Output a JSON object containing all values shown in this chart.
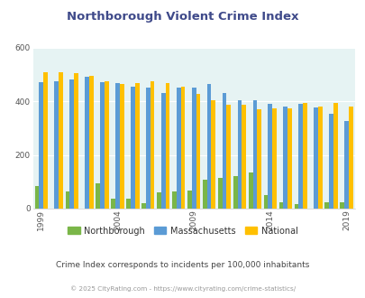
{
  "title": "Northborough Violent Crime Index",
  "subtitle": "Crime Index corresponds to incidents per 100,000 inhabitants",
  "footer": "© 2025 CityRating.com - https://www.cityrating.com/crime-statistics/",
  "years": [
    1999,
    2000,
    2001,
    2002,
    2003,
    2004,
    2005,
    2006,
    2007,
    2008,
    2009,
    2010,
    2011,
    2012,
    2013,
    2014,
    2015,
    2016,
    2017,
    2018,
    2019
  ],
  "northborough": [
    83,
    0,
    63,
    0,
    93,
    38,
    38,
    20,
    60,
    65,
    68,
    107,
    113,
    120,
    135,
    50,
    22,
    18,
    0,
    22,
    22
  ],
  "massachusetts": [
    473,
    475,
    482,
    490,
    472,
    468,
    453,
    451,
    430,
    450,
    451,
    465,
    430,
    405,
    405,
    392,
    382,
    390,
    378,
    355,
    325
  ],
  "national": [
    508,
    507,
    504,
    494,
    476,
    463,
    469,
    474,
    467,
    455,
    429,
    404,
    387,
    387,
    370,
    374,
    373,
    394,
    382,
    395,
    379
  ],
  "bar_colors": {
    "northborough": "#7ab648",
    "massachusetts": "#5b9bd5",
    "national": "#ffc000"
  },
  "plot_bg": "#e6f3f3",
  "fig_bg": "#ffffff",
  "ylim": [
    0,
    600
  ],
  "yticks": [
    0,
    200,
    400,
    600
  ],
  "title_color": "#3f4a8a",
  "subtitle_color": "#444444",
  "footer_color": "#999999",
  "legend_labels": [
    "Northborough",
    "Massachusetts",
    "National"
  ],
  "bar_width": 0.28,
  "tick_years": [
    1999,
    2004,
    2009,
    2014,
    2019
  ]
}
